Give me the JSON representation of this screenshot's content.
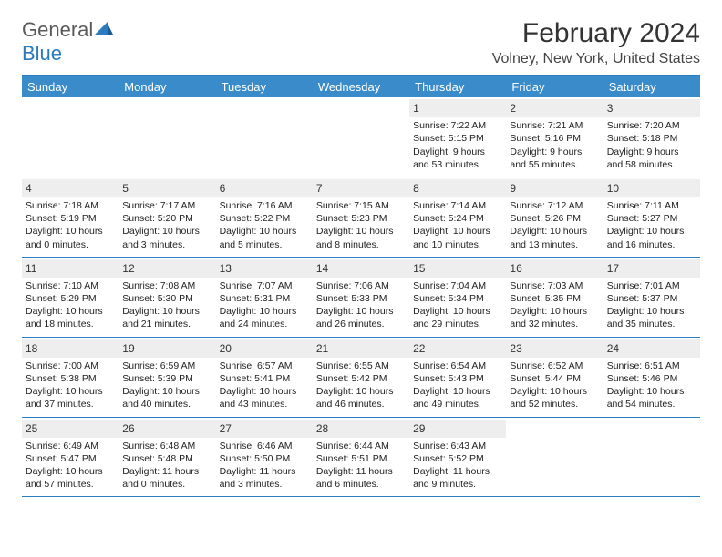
{
  "brand": {
    "part1": "General",
    "part2": "Blue"
  },
  "title": "February 2024",
  "location": "Volney, New York, United States",
  "colors": {
    "header_bg": "#3a8bc9",
    "header_border": "#2b7bbf",
    "daynum_bg": "#eeeeee",
    "text": "#222222",
    "page_bg": "#ffffff"
  },
  "day_names": [
    "Sunday",
    "Monday",
    "Tuesday",
    "Wednesday",
    "Thursday",
    "Friday",
    "Saturday"
  ],
  "weeks": [
    [
      {
        "empty": true
      },
      {
        "empty": true
      },
      {
        "empty": true
      },
      {
        "empty": true
      },
      {
        "n": "1",
        "sr": "Sunrise: 7:22 AM",
        "ss": "Sunset: 5:15 PM",
        "dl1": "Daylight: 9 hours",
        "dl2": "and 53 minutes."
      },
      {
        "n": "2",
        "sr": "Sunrise: 7:21 AM",
        "ss": "Sunset: 5:16 PM",
        "dl1": "Daylight: 9 hours",
        "dl2": "and 55 minutes."
      },
      {
        "n": "3",
        "sr": "Sunrise: 7:20 AM",
        "ss": "Sunset: 5:18 PM",
        "dl1": "Daylight: 9 hours",
        "dl2": "and 58 minutes."
      }
    ],
    [
      {
        "n": "4",
        "sr": "Sunrise: 7:18 AM",
        "ss": "Sunset: 5:19 PM",
        "dl1": "Daylight: 10 hours",
        "dl2": "and 0 minutes."
      },
      {
        "n": "5",
        "sr": "Sunrise: 7:17 AM",
        "ss": "Sunset: 5:20 PM",
        "dl1": "Daylight: 10 hours",
        "dl2": "and 3 minutes."
      },
      {
        "n": "6",
        "sr": "Sunrise: 7:16 AM",
        "ss": "Sunset: 5:22 PM",
        "dl1": "Daylight: 10 hours",
        "dl2": "and 5 minutes."
      },
      {
        "n": "7",
        "sr": "Sunrise: 7:15 AM",
        "ss": "Sunset: 5:23 PM",
        "dl1": "Daylight: 10 hours",
        "dl2": "and 8 minutes."
      },
      {
        "n": "8",
        "sr": "Sunrise: 7:14 AM",
        "ss": "Sunset: 5:24 PM",
        "dl1": "Daylight: 10 hours",
        "dl2": "and 10 minutes."
      },
      {
        "n": "9",
        "sr": "Sunrise: 7:12 AM",
        "ss": "Sunset: 5:26 PM",
        "dl1": "Daylight: 10 hours",
        "dl2": "and 13 minutes."
      },
      {
        "n": "10",
        "sr": "Sunrise: 7:11 AM",
        "ss": "Sunset: 5:27 PM",
        "dl1": "Daylight: 10 hours",
        "dl2": "and 16 minutes."
      }
    ],
    [
      {
        "n": "11",
        "sr": "Sunrise: 7:10 AM",
        "ss": "Sunset: 5:29 PM",
        "dl1": "Daylight: 10 hours",
        "dl2": "and 18 minutes."
      },
      {
        "n": "12",
        "sr": "Sunrise: 7:08 AM",
        "ss": "Sunset: 5:30 PM",
        "dl1": "Daylight: 10 hours",
        "dl2": "and 21 minutes."
      },
      {
        "n": "13",
        "sr": "Sunrise: 7:07 AM",
        "ss": "Sunset: 5:31 PM",
        "dl1": "Daylight: 10 hours",
        "dl2": "and 24 minutes."
      },
      {
        "n": "14",
        "sr": "Sunrise: 7:06 AM",
        "ss": "Sunset: 5:33 PM",
        "dl1": "Daylight: 10 hours",
        "dl2": "and 26 minutes."
      },
      {
        "n": "15",
        "sr": "Sunrise: 7:04 AM",
        "ss": "Sunset: 5:34 PM",
        "dl1": "Daylight: 10 hours",
        "dl2": "and 29 minutes."
      },
      {
        "n": "16",
        "sr": "Sunrise: 7:03 AM",
        "ss": "Sunset: 5:35 PM",
        "dl1": "Daylight: 10 hours",
        "dl2": "and 32 minutes."
      },
      {
        "n": "17",
        "sr": "Sunrise: 7:01 AM",
        "ss": "Sunset: 5:37 PM",
        "dl1": "Daylight: 10 hours",
        "dl2": "and 35 minutes."
      }
    ],
    [
      {
        "n": "18",
        "sr": "Sunrise: 7:00 AM",
        "ss": "Sunset: 5:38 PM",
        "dl1": "Daylight: 10 hours",
        "dl2": "and 37 minutes."
      },
      {
        "n": "19",
        "sr": "Sunrise: 6:59 AM",
        "ss": "Sunset: 5:39 PM",
        "dl1": "Daylight: 10 hours",
        "dl2": "and 40 minutes."
      },
      {
        "n": "20",
        "sr": "Sunrise: 6:57 AM",
        "ss": "Sunset: 5:41 PM",
        "dl1": "Daylight: 10 hours",
        "dl2": "and 43 minutes."
      },
      {
        "n": "21",
        "sr": "Sunrise: 6:55 AM",
        "ss": "Sunset: 5:42 PM",
        "dl1": "Daylight: 10 hours",
        "dl2": "and 46 minutes."
      },
      {
        "n": "22",
        "sr": "Sunrise: 6:54 AM",
        "ss": "Sunset: 5:43 PM",
        "dl1": "Daylight: 10 hours",
        "dl2": "and 49 minutes."
      },
      {
        "n": "23",
        "sr": "Sunrise: 6:52 AM",
        "ss": "Sunset: 5:44 PM",
        "dl1": "Daylight: 10 hours",
        "dl2": "and 52 minutes."
      },
      {
        "n": "24",
        "sr": "Sunrise: 6:51 AM",
        "ss": "Sunset: 5:46 PM",
        "dl1": "Daylight: 10 hours",
        "dl2": "and 54 minutes."
      }
    ],
    [
      {
        "n": "25",
        "sr": "Sunrise: 6:49 AM",
        "ss": "Sunset: 5:47 PM",
        "dl1": "Daylight: 10 hours",
        "dl2": "and 57 minutes."
      },
      {
        "n": "26",
        "sr": "Sunrise: 6:48 AM",
        "ss": "Sunset: 5:48 PM",
        "dl1": "Daylight: 11 hours",
        "dl2": "and 0 minutes."
      },
      {
        "n": "27",
        "sr": "Sunrise: 6:46 AM",
        "ss": "Sunset: 5:50 PM",
        "dl1": "Daylight: 11 hours",
        "dl2": "and 3 minutes."
      },
      {
        "n": "28",
        "sr": "Sunrise: 6:44 AM",
        "ss": "Sunset: 5:51 PM",
        "dl1": "Daylight: 11 hours",
        "dl2": "and 6 minutes."
      },
      {
        "n": "29",
        "sr": "Sunrise: 6:43 AM",
        "ss": "Sunset: 5:52 PM",
        "dl1": "Daylight: 11 hours",
        "dl2": "and 9 minutes."
      },
      {
        "empty": true
      },
      {
        "empty": true
      }
    ]
  ]
}
